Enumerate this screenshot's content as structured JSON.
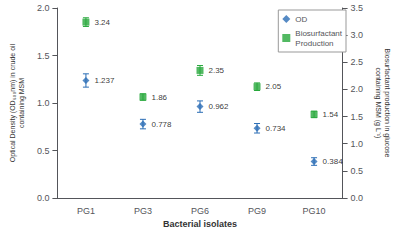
{
  "chart_data": {
    "type": "scatter",
    "xlabel": "Bacterial isolates",
    "ylabel": "Optical Density (OD₆₀₀nm) in crude oil\ncontaining MSM",
    "y2label": "Biosurfactant production in glucose\ncontaining MSM (g L⁻¹)",
    "categories": [
      "PG1",
      "PG3",
      "PG6",
      "PG9",
      "PG10"
    ],
    "series": [
      {
        "name": "OD",
        "color": "#2b6db5",
        "marker": "diamond",
        "values": [
          1.237,
          0.778,
          0.962,
          0.734,
          0.384
        ],
        "errors": [
          0.07,
          0.05,
          0.06,
          0.05,
          0.04
        ]
      },
      {
        "name": "Biosurfactant\nProduction",
        "color": "#27a83b",
        "marker": "square",
        "axis": "y2",
        "values": [
          3.24,
          1.86,
          2.35,
          2.05,
          1.54
        ],
        "errors": [
          0.08,
          0.06,
          0.09,
          0.07,
          0.06
        ]
      }
    ],
    "ylim": [
      0,
      2.0
    ],
    "yticks": [
      {
        "value": 0,
        "label": "0.0"
      },
      0.5,
      {
        "value": 1.0,
        "label": "1.0"
      },
      1.5,
      {
        "value": 2.0,
        "label": "2.0"
      }
    ],
    "y2lim": [
      0,
      3.5
    ],
    "y2ticks": [
      {
        "value": 0,
        "label": "0.0"
      },
      0.5,
      {
        "value": 1.0,
        "label": "1.0"
      },
      1.5,
      {
        "value": 2.0,
        "label": "2.0"
      },
      2.5,
      {
        "value": 3.0,
        "label": "3.0"
      },
      3.5
    ],
    "data_labels": true,
    "legend": "upper right",
    "grid": false
  }
}
